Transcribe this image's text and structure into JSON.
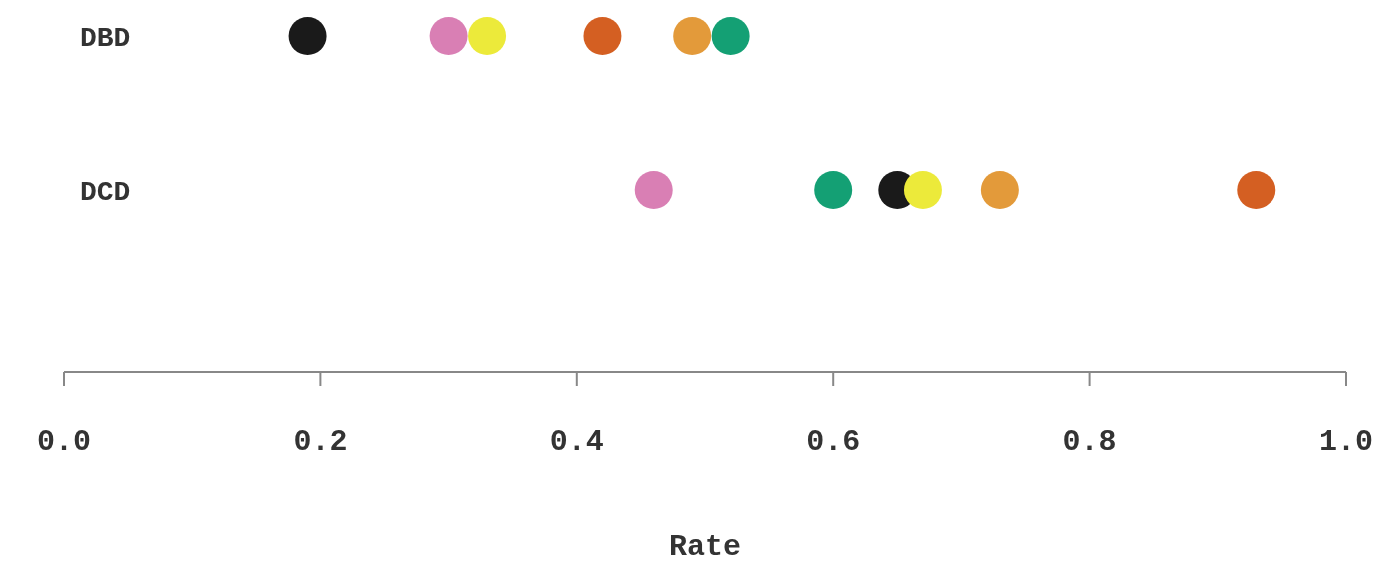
{
  "chart_data": {
    "type": "scatter",
    "orientation": "horizontal",
    "xlabel": "Rate",
    "categories": [
      "DBD",
      "DCD"
    ],
    "xlim": [
      0,
      1
    ],
    "xticks": [
      {
        "value": 0,
        "label": "0.0"
      },
      0.2,
      0.4,
      0.6,
      0.8,
      {
        "value": 1,
        "label": "1.0"
      }
    ],
    "marker": "circle",
    "grid": false,
    "series": [
      {
        "color": "#1a1a1a",
        "values": [
          0.19,
          0.65
        ]
      },
      {
        "color": "#d97fb4",
        "values": [
          0.3,
          0.46
        ]
      },
      {
        "color": "#ecea3a",
        "values": [
          0.33,
          0.67
        ]
      },
      {
        "color": "#d45f22",
        "values": [
          0.42,
          0.93
        ]
      },
      {
        "color": "#e39a3a",
        "values": [
          0.49,
          0.73
        ]
      },
      {
        "color": "#14a074",
        "values": [
          0.52,
          0.6
        ]
      }
    ]
  }
}
